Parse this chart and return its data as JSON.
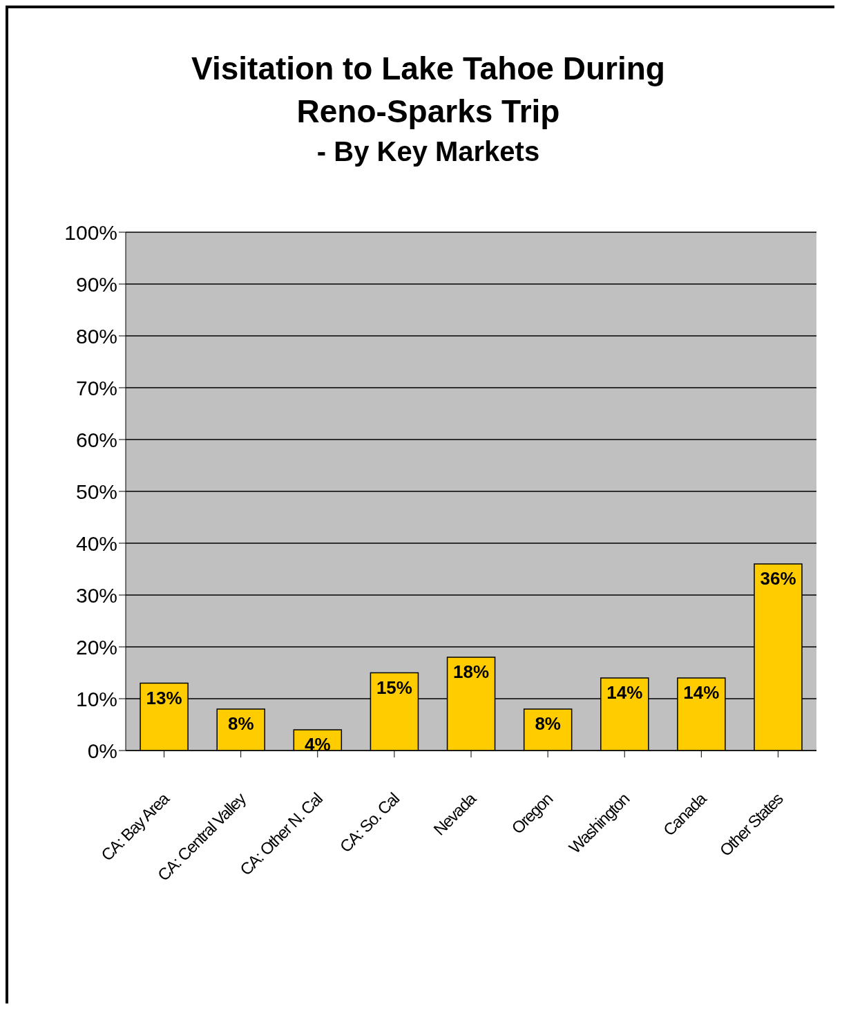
{
  "chart_data": {
    "type": "bar",
    "title": "Visitation to Lake Tahoe During Reno-Sparks Trip",
    "subtitle": "- By Key Markets",
    "categories": [
      "CA: Bay Area",
      "CA: Central Valley",
      "CA: Other N. Cal",
      "CA: So. Cal",
      "Nevada",
      "Oregon",
      "Washington",
      "Canada",
      "Other States"
    ],
    "values": [
      13,
      8,
      4,
      15,
      18,
      8,
      14,
      14,
      36
    ],
    "value_labels": [
      "13%",
      "8%",
      "4%",
      "15%",
      "18%",
      "8%",
      "14%",
      "14%",
      "36%"
    ],
    "color": "#ffcc00",
    "ylim": [
      0,
      100
    ],
    "yticks": [
      {
        "value": 0,
        "label": "0%"
      },
      {
        "value": 10,
        "label": "10%"
      },
      {
        "value": 20,
        "label": "20%"
      },
      {
        "value": 30,
        "label": "30%"
      },
      {
        "value": 40,
        "label": "40%"
      },
      {
        "value": 50,
        "label": "50%"
      },
      {
        "value": 60,
        "label": "60%"
      },
      {
        "value": 70,
        "label": "70%"
      },
      {
        "value": 80,
        "label": "80%"
      },
      {
        "value": 90,
        "label": "90%"
      },
      {
        "value": 100,
        "label": "100%"
      }
    ],
    "grid": "y"
  }
}
